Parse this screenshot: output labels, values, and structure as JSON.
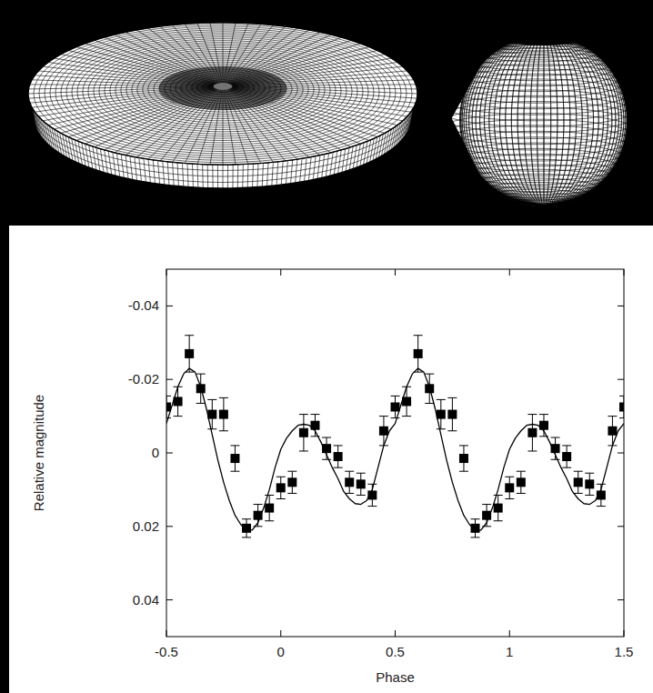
{
  "chart_data": {
    "type": "scatter",
    "x_label": "Phase",
    "y_label": "Relative magnitude",
    "xlim": [
      -0.5,
      1.5
    ],
    "ylim": [
      0.05,
      -0.05
    ],
    "xticks": [
      -0.5,
      0,
      0.5,
      1,
      1.5
    ],
    "yticks": [
      -0.04,
      -0.02,
      0,
      0.02,
      0.04
    ],
    "grid": false,
    "series": [
      {
        "type": "scatter",
        "marker": "square",
        "color": "#000000",
        "x": [
          -0.5,
          -0.45,
          -0.4,
          -0.35,
          -0.3,
          -0.25,
          -0.2,
          -0.15,
          -0.1,
          -0.05,
          0,
          0.05,
          0.1,
          0.15,
          0.2,
          0.25,
          0.3,
          0.35,
          0.4,
          0.45,
          0.5,
          0.55,
          0.6,
          0.65,
          0.7,
          0.75,
          0.8,
          0.85,
          0.9,
          0.95,
          1,
          1.05,
          1.1,
          1.15,
          1.2,
          1.25,
          1.3,
          1.35,
          1.4,
          1.45,
          1.5
        ],
        "values": [
          -0.0125,
          -0.014,
          -0.027,
          -0.0175,
          -0.0105,
          -0.0105,
          0.0015,
          0.0205,
          0.017,
          0.015,
          0.0095,
          0.008,
          -0.0055,
          -0.0075,
          -0.0012,
          0.001,
          0.008,
          0.0085,
          0.0115,
          -0.006,
          -0.0125,
          -0.014,
          -0.027,
          -0.0175,
          -0.0105,
          -0.0105,
          0.0015,
          0.0205,
          0.017,
          0.015,
          0.0095,
          0.008,
          -0.0055,
          -0.0075,
          -0.0012,
          0.001,
          0.008,
          0.0085,
          0.0115,
          -0.006,
          -0.0125
        ],
        "errors": [
          0.003,
          0.004,
          0.005,
          0.004,
          0.004,
          0.0045,
          0.0035,
          0.0025,
          0.003,
          0.0035,
          0.003,
          0.003,
          0.005,
          0.003,
          0.003,
          0.003,
          0.003,
          0.003,
          0.003,
          0.004,
          0.003,
          0.004,
          0.005,
          0.004,
          0.004,
          0.0045,
          0.0035,
          0.0025,
          0.003,
          0.0035,
          0.003,
          0.003,
          0.005,
          0.003,
          0.003,
          0.003,
          0.003,
          0.003,
          0.003,
          0.004,
          0.003
        ]
      },
      {
        "type": "line",
        "line_style": "solid",
        "color": "#000000",
        "x": [
          -0.5,
          -0.475,
          -0.45,
          -0.425,
          -0.4,
          -0.375,
          -0.35,
          -0.325,
          -0.3,
          -0.275,
          -0.25,
          -0.225,
          -0.2,
          -0.175,
          -0.15,
          -0.125,
          -0.1,
          -0.075,
          -0.05,
          -0.025,
          0,
          0.025,
          0.05,
          0.075,
          0.1,
          0.125,
          0.15,
          0.175,
          0.2,
          0.225,
          0.25,
          0.275,
          0.3,
          0.325,
          0.35,
          0.375,
          0.4,
          0.425,
          0.45,
          0.475,
          0.5,
          0.525,
          0.55,
          0.575,
          0.6,
          0.625,
          0.65,
          0.675,
          0.7,
          0.725,
          0.75,
          0.775,
          0.8,
          0.825,
          0.85,
          0.875,
          0.9,
          0.925,
          0.95,
          0.975,
          1,
          1.025,
          1.05,
          1.075,
          1.1,
          1.125,
          1.15,
          1.175,
          1.2,
          1.225,
          1.25,
          1.275,
          1.3,
          1.325,
          1.35,
          1.375,
          1.4,
          1.425,
          1.45,
          1.475,
          1.5
        ],
        "values": [
          -0.008,
          -0.013,
          -0.018,
          -0.0215,
          -0.023,
          -0.022,
          -0.018,
          -0.012,
          -0.005,
          0.002,
          0.008,
          0.013,
          0.017,
          0.0195,
          0.021,
          0.021,
          0.019,
          0.015,
          0.01,
          0.004,
          -0.001,
          -0.004,
          -0.006,
          -0.0075,
          -0.0078,
          -0.0075,
          -0.006,
          -0.003,
          0.0005,
          0.004,
          0.007,
          0.0105,
          0.0125,
          0.0138,
          0.014,
          0.013,
          0.01,
          0.004,
          -0.002,
          -0.006,
          -0.008,
          -0.013,
          -0.018,
          -0.0215,
          -0.023,
          -0.022,
          -0.018,
          -0.012,
          -0.005,
          0.002,
          0.008,
          0.013,
          0.017,
          0.0195,
          0.021,
          0.021,
          0.019,
          0.015,
          0.01,
          0.004,
          -0.001,
          -0.004,
          -0.006,
          -0.0075,
          -0.0078,
          -0.0075,
          -0.006,
          -0.003,
          0.0005,
          0.004,
          0.007,
          0.0105,
          0.0125,
          0.0138,
          0.014,
          0.013,
          0.01,
          0.004,
          -0.002,
          -0.006,
          -0.008
        ]
      }
    ]
  }
}
